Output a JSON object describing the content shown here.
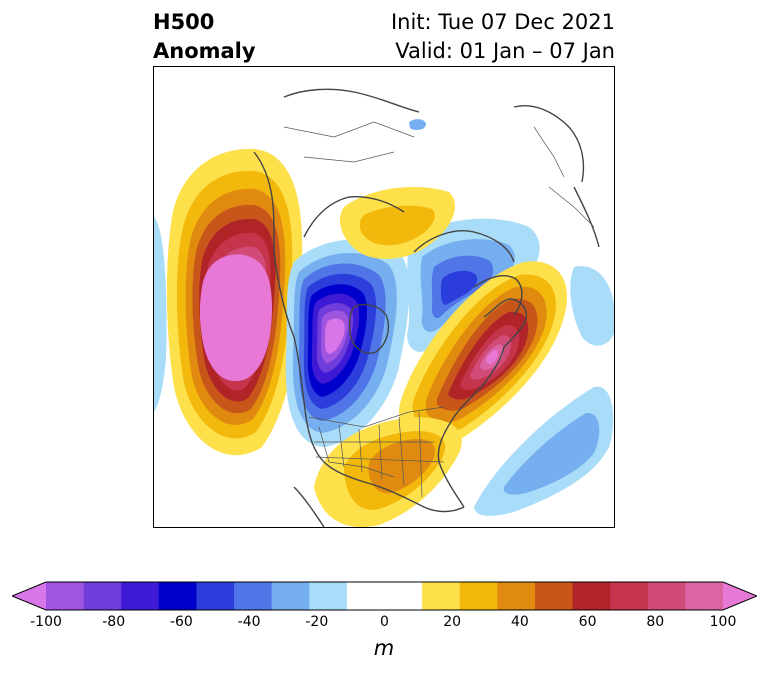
{
  "title": {
    "variable": "H500",
    "type": "Anomaly",
    "init": "Init: Tue 07 Dec 2021",
    "valid": "Valid: 01 Jan – 07 Jan"
  },
  "colorbar": {
    "unit": "m",
    "ticks": [
      "-100",
      "-80",
      "-60",
      "-40",
      "-20",
      "0",
      "20",
      "40",
      "60",
      "80",
      "100"
    ],
    "levels": [
      -100,
      -90,
      -80,
      -70,
      -60,
      -50,
      -40,
      -30,
      -20,
      -10,
      10,
      20,
      30,
      40,
      50,
      60,
      70,
      80,
      90,
      100
    ],
    "colors": [
      "#d875e8",
      "#9f55e0",
      "#6f3ddb",
      "#3e1ad4",
      "#0000cc",
      "#2b3edb",
      "#4f75e6",
      "#76aff0",
      "#a9dcf8",
      "#ffffff",
      "#ffffff",
      "#fde04a",
      "#f2b80c",
      "#e08b10",
      "#c8561a",
      "#b02428",
      "#c4344b",
      "#d04b78",
      "#dc64a4",
      "#e878d6"
    ]
  },
  "anomaly_centers": [
    {
      "region": "NE Pacific / Gulf of Alaska",
      "sign": "positive",
      "peak": 100
    },
    {
      "region": "Hudson Bay / Canada",
      "sign": "negative",
      "peak": -100
    },
    {
      "region": "Greenland / North Atlantic",
      "sign": "positive",
      "peak": 100
    },
    {
      "region": "Norwegian Sea / Scandinavia",
      "sign": "negative",
      "peak": -50
    },
    {
      "region": "Eastern United States",
      "sign": "positive",
      "peak": 50
    },
    {
      "region": "Eastern Siberia",
      "sign": "positive",
      "peak": 30
    },
    {
      "region": "Subtropical Atlantic",
      "sign": "negative",
      "peak": -30
    }
  ]
}
